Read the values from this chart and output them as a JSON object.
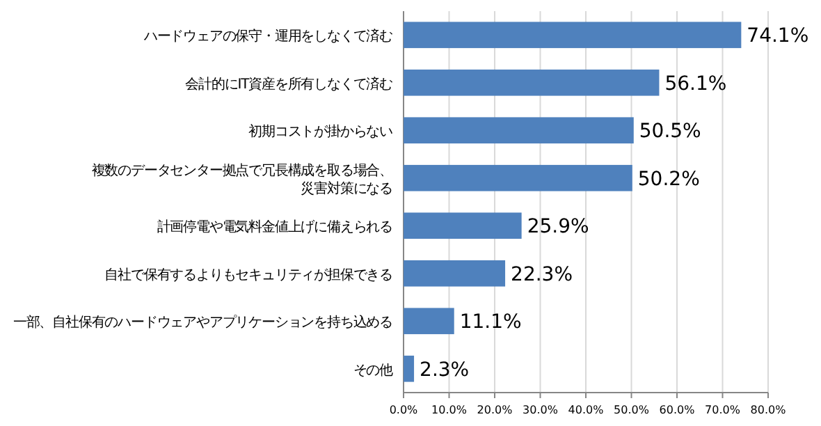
{
  "chart_data": {
    "type": "bar",
    "orientation": "horizontal",
    "categories": [
      "ハードウェアの保守・運用をしなくて済む",
      "会計的にIT資産を所有しなくて済む",
      "初期コストが掛からない",
      "複数のデータセンター拠点で冗長構成を取る場合、災害対策になる",
      "計画停電や電気料金値上げに備えられる",
      "自社で保有するよりもセキュリティが担保できる",
      "一部、自社保有のハードウェアやアプリケーションを持ち込める",
      "その他"
    ],
    "values": [
      74.1,
      56.1,
      50.5,
      50.2,
      25.9,
      22.3,
      11.1,
      2.3
    ],
    "color": "#4f81bd",
    "value_labels": [
      "74.1%",
      "56.1%",
      "50.5%",
      "50.2%",
      "25.9%",
      "22.3%",
      "11.1%",
      "2.3%"
    ],
    "xlim": [
      0,
      80
    ],
    "xticks": [
      {
        "value": 0,
        "label": "0.0%"
      },
      {
        "value": 10,
        "label": "10.0%"
      },
      {
        "value": 20,
        "label": "20.0%"
      },
      {
        "value": 30,
        "label": "30.0%"
      },
      {
        "value": 40,
        "label": "40.0%"
      },
      {
        "value": 50,
        "label": "50.0%"
      },
      {
        "value": 60,
        "label": "60.0%"
      },
      {
        "value": 70,
        "label": "70.0%"
      },
      {
        "value": 80,
        "label": "80.0%"
      }
    ],
    "grid": "x"
  }
}
